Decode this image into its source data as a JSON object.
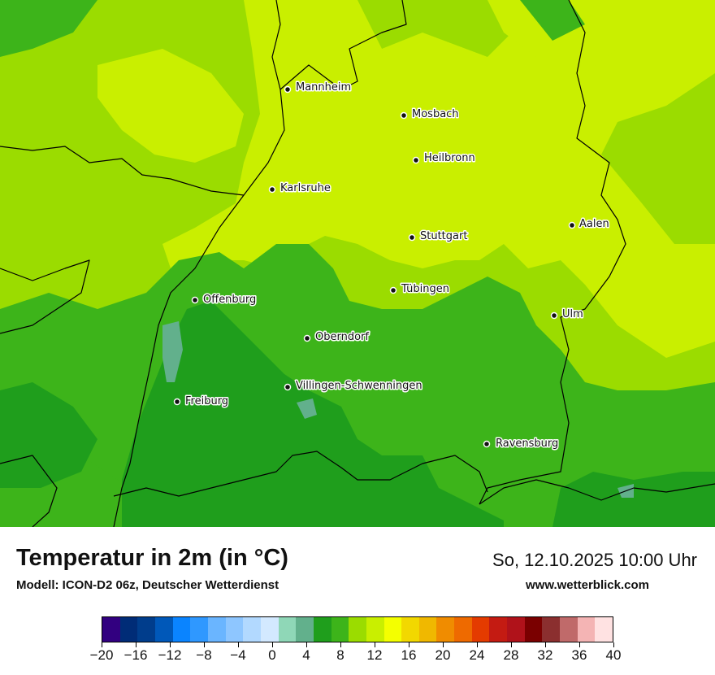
{
  "map": {
    "cities": [
      {
        "name": "Mannheim"
      },
      {
        "name": "Mosbach"
      },
      {
        "name": "Heilbronn"
      },
      {
        "name": "Karlsruhe"
      },
      {
        "name": "Aalen"
      },
      {
        "name": "Stuttgart"
      },
      {
        "name": "Tübingen"
      },
      {
        "name": "Offenburg"
      },
      {
        "name": "Ulm"
      },
      {
        "name": "Oberndorf"
      },
      {
        "name": "Villingen-Schwenningen"
      },
      {
        "name": "Freiburg"
      },
      {
        "name": "Ravensburg"
      }
    ],
    "colors": {
      "temp_8_10": "#1f9e1c",
      "temp_10_12": "#3db41a",
      "temp_12_14": "#9bdc00",
      "temp_14_16": "#c9ef00",
      "temp_4_6": "#8fd7b7",
      "temp_6_8": "#62b08c",
      "border": "#000000"
    }
  },
  "footer": {
    "title": "Temperatur in 2m (in °C)",
    "subtitle": "Modell: ICON-D2 06z, Deutscher Wetterdienst",
    "datetime": "So, 12.10.2025 10:00 Uhr",
    "website": "www.wetterblick.com"
  },
  "legend": {
    "colors": [
      "#320080",
      "#002c77",
      "#003d8c",
      "#0058b9",
      "#0a84ff",
      "#2f98ff",
      "#6ab5ff",
      "#8ec6ff",
      "#b2d9ff",
      "#d3e9ff",
      "#8fd7b7",
      "#62b08c",
      "#1f9e1c",
      "#3db41a",
      "#9bdc00",
      "#c9ef00",
      "#f4ff00",
      "#f2d800",
      "#f0b800",
      "#f08c00",
      "#ee6a00",
      "#e43b00",
      "#c41b12",
      "#b0121a",
      "#7a0000",
      "#8b2f2f",
      "#c06a6a",
      "#f4b4b4",
      "#ffe2e2"
    ],
    "tick_labels": [
      "−20",
      "−16",
      "−12",
      "−8",
      "−4",
      "0",
      "4",
      "8",
      "12",
      "16",
      "20",
      "24",
      "28",
      "32",
      "36",
      "40"
    ]
  }
}
